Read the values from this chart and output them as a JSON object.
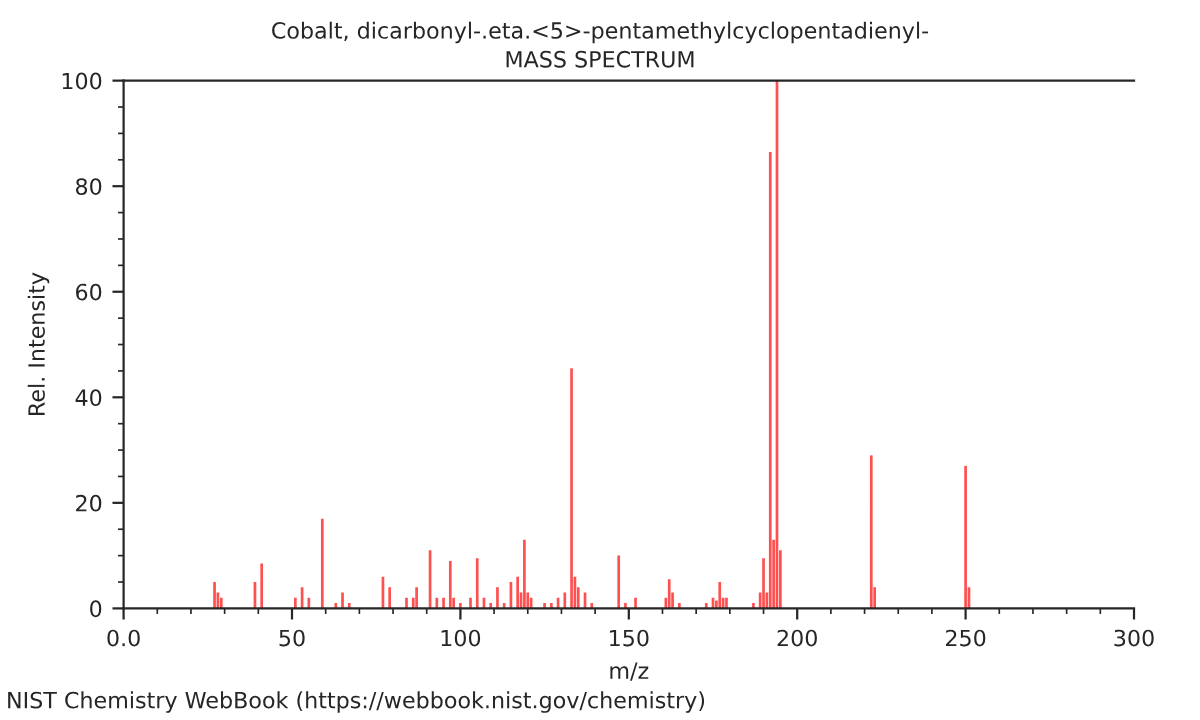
{
  "chart_data": {
    "type": "bar",
    "title": "Cobalt, dicarbonyl-.eta.<5>-pentamethylcyclopentadienyl-",
    "subtitle": "MASS SPECTRUM",
    "xlabel": "m/z",
    "ylabel": "Rel. Intensity",
    "x": [
      27,
      28,
      29,
      39,
      41,
      51,
      53,
      55,
      59,
      63,
      65,
      67,
      77,
      79,
      84,
      86,
      87,
      91,
      93,
      95,
      97,
      98,
      100,
      103,
      105,
      107,
      109,
      111,
      113,
      115,
      117,
      118,
      119,
      120,
      121,
      125,
      127,
      129,
      131,
      133,
      134,
      135,
      137,
      139,
      147,
      149,
      152,
      161,
      162,
      163,
      165,
      173,
      175,
      176,
      177,
      178,
      179,
      187,
      189,
      190,
      191,
      192,
      193,
      194,
      195,
      222,
      223,
      250,
      251
    ],
    "values": [
      5,
      3,
      2,
      5,
      8.5,
      2,
      4,
      2,
      17,
      1,
      3,
      1,
      6,
      4,
      2,
      2,
      4,
      11,
      2,
      2,
      9,
      2,
      1,
      2,
      9.5,
      2,
      1,
      4,
      1,
      5,
      6,
      3,
      13,
      3,
      2,
      1,
      1,
      2,
      3,
      45.5,
      6,
      4,
      3,
      1,
      10,
      1,
      2,
      2,
      5.5,
      3,
      1,
      1,
      2,
      1.5,
      5,
      2,
      2,
      1,
      3,
      9.5,
      3,
      86.5,
      13,
      100,
      11,
      29,
      4,
      27,
      4
    ],
    "color": "#ff5050",
    "xlim": [
      0,
      300
    ],
    "xticks": [
      {
        "value": 0,
        "label": "0.0"
      },
      50,
      100,
      150,
      200,
      250,
      300
    ],
    "ylim": [
      0,
      100
    ],
    "yticks": [
      0,
      20,
      40,
      60,
      80,
      100
    ],
    "grid": false,
    "annotations": [
      "NIST Chemistry WebBook (https://webbook.nist.gov/chemistry)"
    ]
  }
}
